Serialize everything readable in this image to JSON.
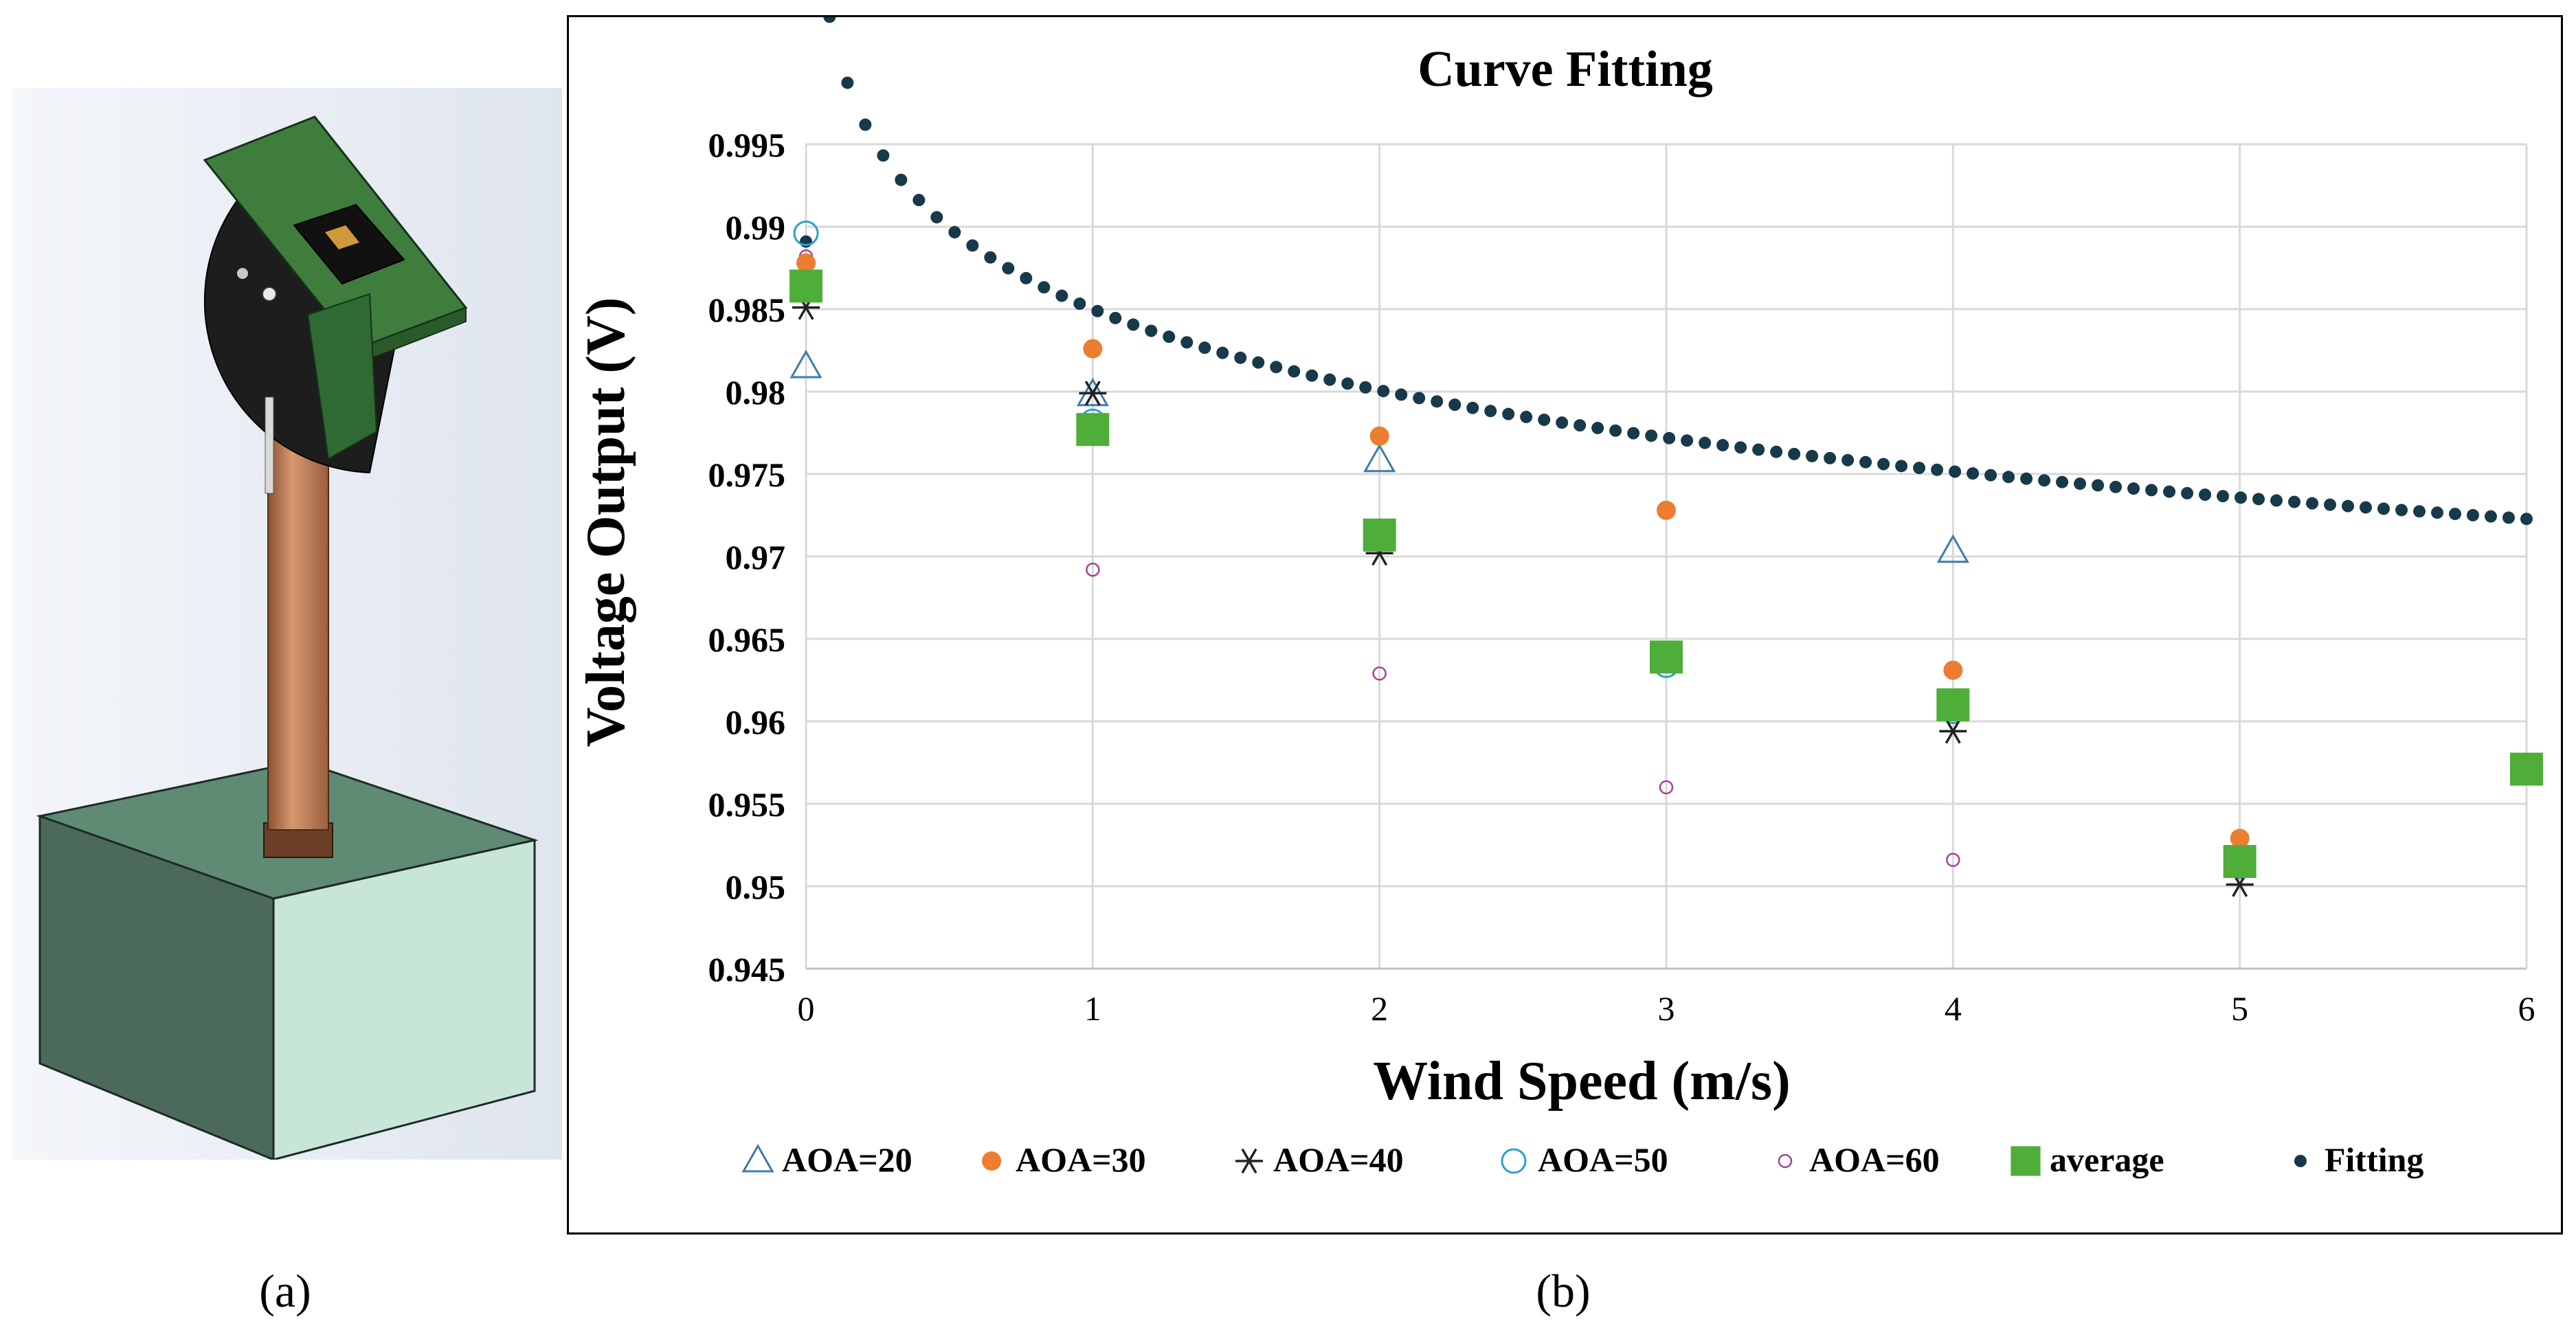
{
  "panel_labels": {
    "a": "(a)",
    "b": "(b)"
  },
  "device_image": {
    "description_icon": "solidworks-render-sensor-on-pole-icon",
    "colors": {
      "box_front": "#4b6a5c",
      "box_side": "#c8e6d8",
      "box_top": "#5f8a74",
      "pole": "#b7764e",
      "board": "#3f7d3d",
      "disc": "#202020"
    }
  },
  "chart_data": {
    "type": "scatter",
    "title": "Curve Fitting",
    "xlabel": "Wind Speed (m/s)",
    "ylabel": "Voltage Output (V)",
    "xlim": [
      0,
      6
    ],
    "ylim": [
      0.945,
      0.995
    ],
    "x_ticks": [
      "0",
      "1",
      "2",
      "3",
      "4",
      "5",
      "6"
    ],
    "y_ticks": [
      "0.945",
      "0.95",
      "0.955",
      "0.96",
      "0.965",
      "0.97",
      "0.975",
      "0.98",
      "0.985",
      "0.99",
      "0.995"
    ],
    "grid": true,
    "legend_position": "bottom",
    "series": [
      {
        "name": "AOA=20",
        "marker": "triangle-open",
        "color": "#3c7ea6",
        "points": [
          [
            0,
            0.9815
          ],
          [
            1,
            0.9798
          ],
          [
            2,
            0.9758
          ],
          [
            3,
            0.9636
          ],
          [
            4,
            0.9703
          ],
          [
            5,
            0.9515
          ]
        ]
      },
      {
        "name": "AOA=30",
        "marker": "circle-filled",
        "color": "#ed7d31",
        "points": [
          [
            0,
            0.9878
          ],
          [
            1,
            0.9826
          ],
          [
            2,
            0.9773
          ],
          [
            3,
            0.9728
          ],
          [
            4,
            0.9631
          ],
          [
            5,
            0.9529
          ]
        ]
      },
      {
        "name": "AOA=40",
        "marker": "asterisk",
        "color": "#222222",
        "points": [
          [
            0,
            0.9851
          ],
          [
            1,
            0.9799
          ],
          [
            2,
            0.9702
          ],
          [
            3,
            0.9638
          ],
          [
            4,
            0.9594
          ],
          [
            5,
            0.9501
          ]
        ]
      },
      {
        "name": "AOA=50",
        "marker": "circle-open",
        "color": "#2aa1c9",
        "points": [
          [
            0,
            0.9896
          ],
          [
            1,
            0.9782
          ],
          [
            2,
            0.9714
          ],
          [
            3,
            0.9634
          ],
          [
            4,
            0.9606
          ],
          [
            5,
            0.9512
          ]
        ]
      },
      {
        "name": "AOA=60",
        "marker": "circle-small-open",
        "color": "#a0459b",
        "points": [
          [
            0,
            0.9882
          ],
          [
            1,
            0.9692
          ],
          [
            2,
            0.9629
          ],
          [
            3,
            0.956
          ],
          [
            4,
            0.9516
          ],
          [
            5,
            0.9512
          ]
        ]
      },
      {
        "name": "average",
        "marker": "square-filled",
        "color": "#4fad3a",
        "points": [
          [
            0,
            0.9864
          ],
          [
            1,
            0.9777
          ],
          [
            2,
            0.9713
          ],
          [
            3,
            0.9639
          ],
          [
            4,
            0.961
          ],
          [
            5,
            0.9515
          ],
          [
            6,
            0.9571
          ]
        ]
      },
      {
        "name": "Fitting",
        "marker": "dot-dense",
        "color": "#17394a",
        "fit": {
          "form": "log",
          "y0": 0.9891,
          "a": 0.985,
          "b": -0.0071,
          "x_from": 0.02,
          "x_to": 6,
          "count": 97
        }
      }
    ]
  }
}
